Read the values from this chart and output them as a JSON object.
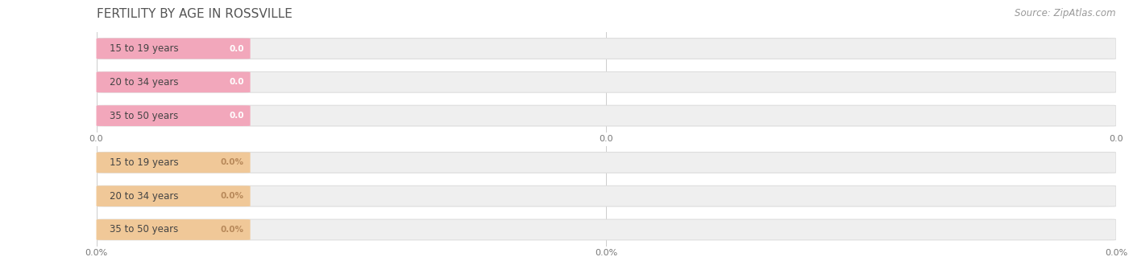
{
  "title": "FERTILITY BY AGE IN ROSSVILLE",
  "source": "Source: ZipAtlas.com",
  "top_section": {
    "categories": [
      "15 to 19 years",
      "20 to 34 years",
      "35 to 50 years"
    ],
    "values": [
      0.0,
      0.0,
      0.0
    ],
    "bar_color": "#f2a7bb",
    "bar_bg_color": "#efefef",
    "bar_bg_edge_color": "#dddddd",
    "value_label_color": "#ffffff",
    "tick_labels": [
      "0.0",
      "0.0",
      "0.0"
    ],
    "unit": ""
  },
  "bottom_section": {
    "categories": [
      "15 to 19 years",
      "20 to 34 years",
      "35 to 50 years"
    ],
    "values": [
      0.0,
      0.0,
      0.0
    ],
    "bar_color": "#f0c898",
    "bar_bg_color": "#efefef",
    "bar_bg_edge_color": "#dddddd",
    "value_label_color": "#b8895a",
    "tick_labels": [
      "0.0%",
      "0.0%",
      "0.0%"
    ],
    "unit": "%"
  },
  "bg_color": "#ffffff",
  "title_color": "#555555",
  "source_color": "#999999",
  "title_fontsize": 11,
  "source_fontsize": 8.5,
  "label_fontsize": 8.5,
  "value_fontsize": 7.5,
  "tick_fontsize": 8
}
